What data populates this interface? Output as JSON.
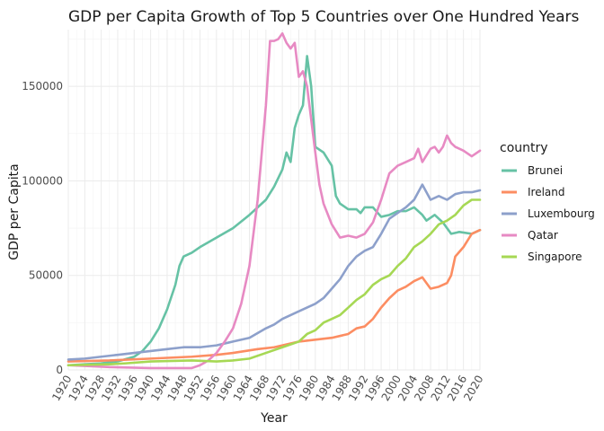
{
  "chart_data": {
    "type": "line",
    "title": "GDP per Capita Growth of Top 5 Countries over One Hundred Years",
    "xlabel": "Year",
    "ylabel": "GDP per Capita",
    "xlim": [
      1920,
      2020
    ],
    "ylim": [
      0,
      180000
    ],
    "x_ticks": [
      "1920",
      "1924",
      "1928",
      "1932",
      "1936",
      "1940",
      "1944",
      "1948",
      "1952",
      "1956",
      "1960",
      "1964",
      "1968",
      "1972",
      "1976",
      "1980",
      "1984",
      "1988",
      "1992",
      "1996",
      "2000",
      "2004",
      "2008",
      "2012",
      "2016",
      "2020"
    ],
    "y_ticks": [
      "0",
      "50000",
      "100000",
      "150000"
    ],
    "legend_title": "country",
    "legend_position": "right",
    "grid": true,
    "series": [
      {
        "name": "Brunei",
        "color": "#66c2a5",
        "points": [
          [
            1920,
            2500
          ],
          [
            1924,
            3000
          ],
          [
            1928,
            3500
          ],
          [
            1932,
            4500
          ],
          [
            1936,
            7000
          ],
          [
            1938,
            10000
          ],
          [
            1940,
            15000
          ],
          [
            1942,
            22000
          ],
          [
            1944,
            32000
          ],
          [
            1946,
            45000
          ],
          [
            1947,
            55000
          ],
          [
            1948,
            60000
          ],
          [
            1950,
            62000
          ],
          [
            1952,
            65000
          ],
          [
            1956,
            70000
          ],
          [
            1960,
            75000
          ],
          [
            1964,
            82000
          ],
          [
            1968,
            90000
          ],
          [
            1970,
            97000
          ],
          [
            1972,
            106000
          ],
          [
            1973,
            115000
          ],
          [
            1974,
            110000
          ],
          [
            1975,
            128000
          ],
          [
            1976,
            135000
          ],
          [
            1977,
            140000
          ],
          [
            1978,
            166000
          ],
          [
            1979,
            150000
          ],
          [
            1980,
            118000
          ],
          [
            1982,
            115000
          ],
          [
            1984,
            108000
          ],
          [
            1985,
            92000
          ],
          [
            1986,
            88000
          ],
          [
            1988,
            85000
          ],
          [
            1990,
            85000
          ],
          [
            1991,
            83000
          ],
          [
            1992,
            86000
          ],
          [
            1994,
            86000
          ],
          [
            1996,
            81000
          ],
          [
            1998,
            82000
          ],
          [
            2000,
            84000
          ],
          [
            2002,
            84000
          ],
          [
            2004,
            86000
          ],
          [
            2006,
            82000
          ],
          [
            2007,
            79000
          ],
          [
            2009,
            82000
          ],
          [
            2011,
            78000
          ],
          [
            2013,
            72000
          ],
          [
            2015,
            73000
          ],
          [
            2018,
            72000
          ],
          [
            2020,
            74000
          ]
        ]
      },
      {
        "name": "Ireland",
        "color": "#fc8d62",
        "points": [
          [
            1920,
            4500
          ],
          [
            1930,
            5000
          ],
          [
            1940,
            6000
          ],
          [
            1950,
            7000
          ],
          [
            1956,
            8000
          ],
          [
            1960,
            9000
          ],
          [
            1966,
            11000
          ],
          [
            1970,
            12000
          ],
          [
            1976,
            15000
          ],
          [
            1980,
            16000
          ],
          [
            1984,
            17000
          ],
          [
            1988,
            19000
          ],
          [
            1990,
            22000
          ],
          [
            1992,
            23000
          ],
          [
            1994,
            27000
          ],
          [
            1996,
            33000
          ],
          [
            1998,
            38000
          ],
          [
            2000,
            42000
          ],
          [
            2002,
            44000
          ],
          [
            2004,
            47000
          ],
          [
            2006,
            49000
          ],
          [
            2008,
            43000
          ],
          [
            2010,
            44000
          ],
          [
            2012,
            46000
          ],
          [
            2013,
            50000
          ],
          [
            2014,
            60000
          ],
          [
            2016,
            65000
          ],
          [
            2018,
            72000
          ],
          [
            2020,
            74000
          ]
        ]
      },
      {
        "name": "Luxembourg",
        "color": "#8da0cb",
        "points": [
          [
            1920,
            5500
          ],
          [
            1924,
            6000
          ],
          [
            1928,
            7000
          ],
          [
            1932,
            8000
          ],
          [
            1936,
            9000
          ],
          [
            1940,
            10000
          ],
          [
            1944,
            11000
          ],
          [
            1948,
            12000
          ],
          [
            1952,
            12000
          ],
          [
            1956,
            13000
          ],
          [
            1960,
            15000
          ],
          [
            1964,
            17000
          ],
          [
            1968,
            22000
          ],
          [
            1970,
            24000
          ],
          [
            1972,
            27000
          ],
          [
            1974,
            29000
          ],
          [
            1976,
            31000
          ],
          [
            1980,
            35000
          ],
          [
            1982,
            38000
          ],
          [
            1984,
            43000
          ],
          [
            1986,
            48000
          ],
          [
            1988,
            55000
          ],
          [
            1990,
            60000
          ],
          [
            1992,
            63000
          ],
          [
            1994,
            65000
          ],
          [
            1996,
            72000
          ],
          [
            1998,
            80000
          ],
          [
            2000,
            83000
          ],
          [
            2002,
            86000
          ],
          [
            2004,
            90000
          ],
          [
            2006,
            98000
          ],
          [
            2008,
            90000
          ],
          [
            2010,
            92000
          ],
          [
            2012,
            90000
          ],
          [
            2014,
            93000
          ],
          [
            2016,
            94000
          ],
          [
            2018,
            94000
          ],
          [
            2020,
            95000
          ]
        ]
      },
      {
        "name": "Qatar",
        "color": "#e78ac3",
        "points": [
          [
            1920,
            2500
          ],
          [
            1930,
            1500
          ],
          [
            1940,
            1000
          ],
          [
            1950,
            1000
          ],
          [
            1952,
            2500
          ],
          [
            1954,
            5000
          ],
          [
            1956,
            9000
          ],
          [
            1958,
            15000
          ],
          [
            1960,
            22000
          ],
          [
            1962,
            35000
          ],
          [
            1964,
            55000
          ],
          [
            1966,
            90000
          ],
          [
            1968,
            140000
          ],
          [
            1969,
            174000
          ],
          [
            1970,
            174000
          ],
          [
            1971,
            175000
          ],
          [
            1972,
            178000
          ],
          [
            1973,
            173000
          ],
          [
            1974,
            170000
          ],
          [
            1975,
            173000
          ],
          [
            1976,
            155000
          ],
          [
            1977,
            158000
          ],
          [
            1978,
            150000
          ],
          [
            1980,
            115000
          ],
          [
            1981,
            98000
          ],
          [
            1982,
            88000
          ],
          [
            1984,
            77000
          ],
          [
            1986,
            70000
          ],
          [
            1988,
            71000
          ],
          [
            1990,
            70000
          ],
          [
            1992,
            72000
          ],
          [
            1994,
            78000
          ],
          [
            1996,
            90000
          ],
          [
            1998,
            104000
          ],
          [
            2000,
            108000
          ],
          [
            2002,
            110000
          ],
          [
            2004,
            112000
          ],
          [
            2005,
            117000
          ],
          [
            2006,
            110000
          ],
          [
            2008,
            117000
          ],
          [
            2009,
            118000
          ],
          [
            2010,
            115000
          ],
          [
            2011,
            118000
          ],
          [
            2012,
            124000
          ],
          [
            2013,
            120000
          ],
          [
            2014,
            118000
          ],
          [
            2016,
            116000
          ],
          [
            2018,
            113000
          ],
          [
            2020,
            116000
          ]
        ]
      },
      {
        "name": "Singapore",
        "color": "#a6d854",
        "points": [
          [
            1920,
            2500
          ],
          [
            1930,
            3000
          ],
          [
            1934,
            3500
          ],
          [
            1940,
            4500
          ],
          [
            1950,
            5000
          ],
          [
            1956,
            4500
          ],
          [
            1960,
            5000
          ],
          [
            1964,
            6000
          ],
          [
            1968,
            9000
          ],
          [
            1972,
            12000
          ],
          [
            1976,
            15000
          ],
          [
            1978,
            19000
          ],
          [
            1980,
            21000
          ],
          [
            1982,
            25000
          ],
          [
            1984,
            27000
          ],
          [
            1986,
            29000
          ],
          [
            1988,
            33000
          ],
          [
            1990,
            37000
          ],
          [
            1992,
            40000
          ],
          [
            1994,
            45000
          ],
          [
            1996,
            48000
          ],
          [
            1998,
            50000
          ],
          [
            2000,
            55000
          ],
          [
            2002,
            59000
          ],
          [
            2004,
            65000
          ],
          [
            2006,
            68000
          ],
          [
            2008,
            72000
          ],
          [
            2010,
            77000
          ],
          [
            2012,
            79000
          ],
          [
            2014,
            82000
          ],
          [
            2016,
            87000
          ],
          [
            2018,
            90000
          ],
          [
            2020,
            90000
          ]
        ]
      }
    ]
  }
}
